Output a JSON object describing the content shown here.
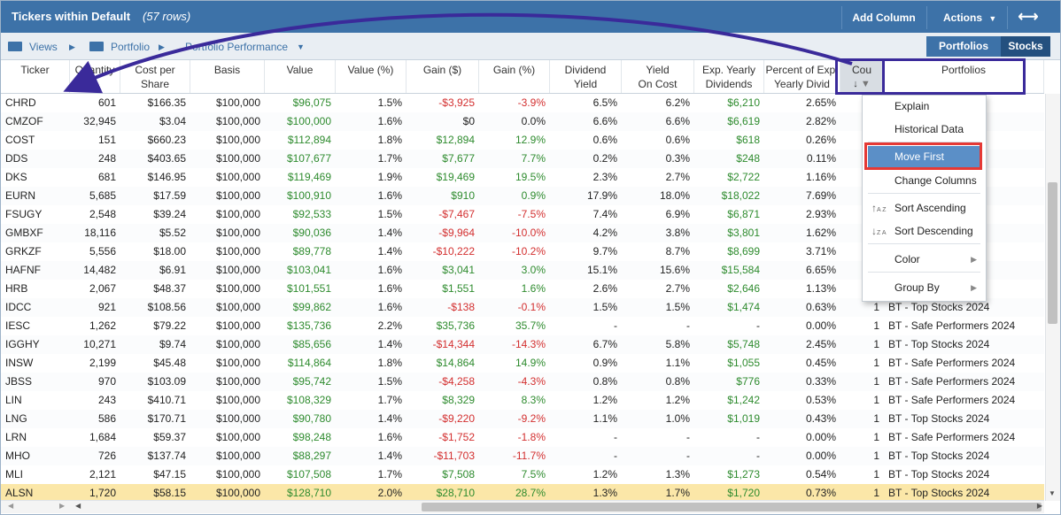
{
  "title": "Tickers within Default",
  "row_count": "(57 rows)",
  "toolbar": {
    "add_column": "Add Column",
    "actions": "Actions"
  },
  "breadcrumb": {
    "views": "Views",
    "portfolio": "Portfolio",
    "performance": "Portfolio Performance"
  },
  "toggle": {
    "portfolios": "Portfolios",
    "stocks": "Stocks"
  },
  "columns": [
    {
      "l1": "Ticker",
      "l2": ""
    },
    {
      "l1": "Quantity",
      "l2": ""
    },
    {
      "l1": "Cost per",
      "l2": "Share"
    },
    {
      "l1": "Basis",
      "l2": ""
    },
    {
      "l1": "Value",
      "l2": ""
    },
    {
      "l1": "Value (%)",
      "l2": ""
    },
    {
      "l1": "Gain ($)",
      "l2": ""
    },
    {
      "l1": "Gain (%)",
      "l2": ""
    },
    {
      "l1": "Dividend",
      "l2": "Yield"
    },
    {
      "l1": "Yield",
      "l2": "On Cost"
    },
    {
      "l1": "Exp. Yearly",
      "l2": "Dividends"
    },
    {
      "l1": "Percent of Exp.",
      "l2": "Yearly Divid"
    },
    {
      "l1": "Cou",
      "l2": ""
    },
    {
      "l1": "Portfolios",
      "l2": ""
    }
  ],
  "rows": [
    [
      "CHRD",
      "601",
      "$166.35",
      "$100,000",
      "$96,075",
      "1.5%",
      "-$3,925",
      "-3.9%",
      "6.5%",
      "6.2%",
      "$6,210",
      "2.65%",
      "",
      ""
    ],
    [
      "CMZOF",
      "32,945",
      "$3.04",
      "$100,000",
      "$100,000",
      "1.6%",
      "$0",
      "0.0%",
      "6.6%",
      "6.6%",
      "$6,619",
      "2.82%",
      "",
      ""
    ],
    [
      "COST",
      "151",
      "$660.23",
      "$100,000",
      "$112,894",
      "1.8%",
      "$12,894",
      "12.9%",
      "0.6%",
      "0.6%",
      "$618",
      "0.26%",
      "",
      "s 2024"
    ],
    [
      "DDS",
      "248",
      "$403.65",
      "$100,000",
      "$107,677",
      "1.7%",
      "$7,677",
      "7.7%",
      "0.2%",
      "0.3%",
      "$248",
      "0.11%",
      "",
      ""
    ],
    [
      "DKS",
      "681",
      "$146.95",
      "$100,000",
      "$119,469",
      "1.9%",
      "$19,469",
      "19.5%",
      "2.3%",
      "2.7%",
      "$2,722",
      "1.16%",
      "",
      "s 2024"
    ],
    [
      "EURN",
      "5,685",
      "$17.59",
      "$100,000",
      "$100,910",
      "1.6%",
      "$910",
      "0.9%",
      "17.9%",
      "18.0%",
      "$18,022",
      "7.69%",
      "",
      ""
    ],
    [
      "FSUGY",
      "2,548",
      "$39.24",
      "$100,000",
      "$92,533",
      "1.5%",
      "-$7,467",
      "-7.5%",
      "7.4%",
      "6.9%",
      "$6,871",
      "2.93%",
      "",
      ""
    ],
    [
      "GMBXF",
      "18,116",
      "$5.52",
      "$100,000",
      "$90,036",
      "1.4%",
      "-$9,964",
      "-10.0%",
      "4.2%",
      "3.8%",
      "$3,801",
      "1.62%",
      "",
      ""
    ],
    [
      "GRKZF",
      "5,556",
      "$18.00",
      "$100,000",
      "$89,778",
      "1.4%",
      "-$10,222",
      "-10.2%",
      "9.7%",
      "8.7%",
      "$8,699",
      "3.71%",
      "",
      ""
    ],
    [
      "HAFNF",
      "14,482",
      "$6.91",
      "$100,000",
      "$103,041",
      "1.6%",
      "$3,041",
      "3.0%",
      "15.1%",
      "15.6%",
      "$15,584",
      "6.65%",
      "",
      ""
    ],
    [
      "HRB",
      "2,067",
      "$48.37",
      "$100,000",
      "$101,551",
      "1.6%",
      "$1,551",
      "1.6%",
      "2.6%",
      "2.7%",
      "$2,646",
      "1.13%",
      "",
      "s 2024"
    ],
    [
      "IDCC",
      "921",
      "$108.56",
      "$100,000",
      "$99,862",
      "1.6%",
      "-$138",
      "-0.1%",
      "1.5%",
      "1.5%",
      "$1,474",
      "0.63%",
      "1",
      "BT - Top Stocks 2024"
    ],
    [
      "IESC",
      "1,262",
      "$79.22",
      "$100,000",
      "$135,736",
      "2.2%",
      "$35,736",
      "35.7%",
      "-",
      "-",
      "-",
      "0.00%",
      "1",
      "BT - Safe Performers 2024"
    ],
    [
      "IGGHY",
      "10,271",
      "$9.74",
      "$100,000",
      "$85,656",
      "1.4%",
      "-$14,344",
      "-14.3%",
      "6.7%",
      "5.8%",
      "$5,748",
      "2.45%",
      "1",
      "BT - Top Stocks 2024"
    ],
    [
      "INSW",
      "2,199",
      "$45.48",
      "$100,000",
      "$114,864",
      "1.8%",
      "$14,864",
      "14.9%",
      "0.9%",
      "1.1%",
      "$1,055",
      "0.45%",
      "1",
      "BT - Safe Performers 2024"
    ],
    [
      "JBSS",
      "970",
      "$103.09",
      "$100,000",
      "$95,742",
      "1.5%",
      "-$4,258",
      "-4.3%",
      "0.8%",
      "0.8%",
      "$776",
      "0.33%",
      "1",
      "BT - Safe Performers 2024"
    ],
    [
      "LIN",
      "243",
      "$410.71",
      "$100,000",
      "$108,329",
      "1.7%",
      "$8,329",
      "8.3%",
      "1.2%",
      "1.2%",
      "$1,242",
      "0.53%",
      "1",
      "BT - Safe Performers 2024"
    ],
    [
      "LNG",
      "586",
      "$170.71",
      "$100,000",
      "$90,780",
      "1.4%",
      "-$9,220",
      "-9.2%",
      "1.1%",
      "1.0%",
      "$1,019",
      "0.43%",
      "1",
      "BT - Top Stocks 2024"
    ],
    [
      "LRN",
      "1,684",
      "$59.37",
      "$100,000",
      "$98,248",
      "1.6%",
      "-$1,752",
      "-1.8%",
      "-",
      "-",
      "-",
      "0.00%",
      "1",
      "BT - Safe Performers 2024"
    ],
    [
      "MHO",
      "726",
      "$137.74",
      "$100,000",
      "$88,297",
      "1.4%",
      "-$11,703",
      "-11.7%",
      "-",
      "-",
      "-",
      "0.00%",
      "1",
      "BT - Top Stocks 2024"
    ],
    [
      "MLI",
      "2,121",
      "$47.15",
      "$100,000",
      "$107,508",
      "1.7%",
      "$7,508",
      "7.5%",
      "1.2%",
      "1.3%",
      "$1,273",
      "0.54%",
      "1",
      "BT - Top Stocks 2024"
    ],
    [
      "ALSN",
      "1,720",
      "$58.15",
      "$100,000",
      "$128,710",
      "2.0%",
      "$28,710",
      "28.7%",
      "1.3%",
      "1.7%",
      "$1,720",
      "0.73%",
      "1",
      "BT - Top Stocks 2024"
    ]
  ],
  "menu": {
    "explain": "Explain",
    "historical": "Historical Data",
    "move_first": "Move First",
    "change_columns": "Change Columns",
    "sort_asc": "Sort Ascending",
    "sort_desc": "Sort Descending",
    "color": "Color",
    "group_by": "Group By"
  },
  "colors": {
    "header": "#3d72a8",
    "selected_row": "#fbe7a8",
    "gain": "#2e8b2e",
    "loss": "#d32f2f",
    "annotation": "#3a2a9a",
    "highlight": "#e53935"
  }
}
